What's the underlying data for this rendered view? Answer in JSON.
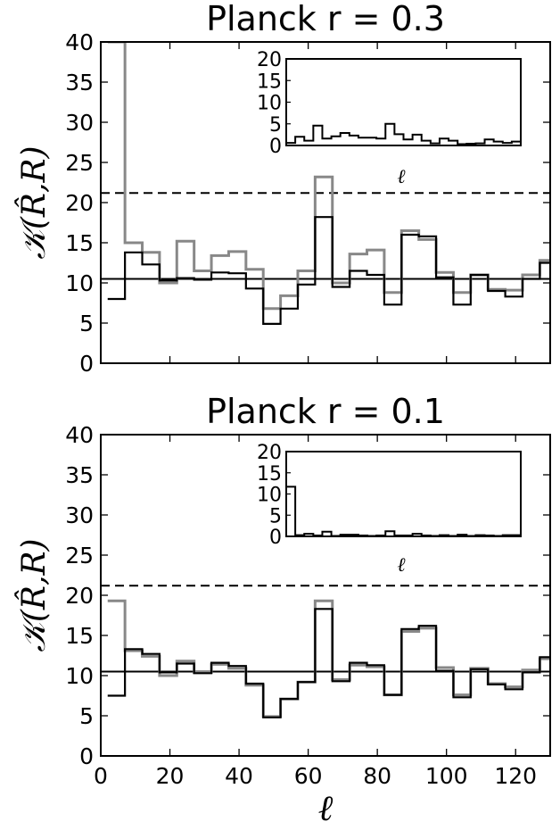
{
  "chart_data": [
    {
      "type": "line",
      "title": "Planck r = 0.3",
      "ylabel": "𝒦(R̂,R)",
      "xlabel": "",
      "xlim": [
        0,
        130
      ],
      "ylim": [
        0,
        40
      ],
      "yticks": [
        0,
        5,
        10,
        15,
        20,
        25,
        30,
        35,
        40
      ],
      "xticks": [
        0,
        20,
        40,
        60,
        80,
        100,
        120
      ],
      "show_xtick_labels": false,
      "hlines": [
        {
          "y": 10.5,
          "style": "solid",
          "color": "#000000"
        },
        {
          "y": 21.2,
          "style": "dashed",
          "color": "#000000"
        }
      ],
      "bin_edges": [
        2,
        7,
        12,
        17,
        22,
        27,
        32,
        37,
        42,
        47,
        52,
        57,
        62,
        67,
        72,
        77,
        82,
        87,
        92,
        97,
        102,
        107,
        112,
        117,
        122,
        127,
        132
      ],
      "series": [
        {
          "color": "#000000",
          "values": [
            8,
            13.8,
            12.3,
            10.3,
            10.6,
            10.4,
            11.3,
            11.2,
            9.3,
            4.9,
            6.8,
            9.8,
            18.2,
            9.5,
            11.5,
            11.0,
            7.3,
            16.0,
            15.8,
            10.7,
            7.3,
            11.0,
            9.0,
            8.3,
            10.5,
            12.5
          ]
        },
        {
          "color": "#888888",
          "values": [
            40,
            15.0,
            13.8,
            10.0,
            15.2,
            11.5,
            13.4,
            13.9,
            11.7,
            6.8,
            8.4,
            11.5,
            23.2,
            10.0,
            13.6,
            14.1,
            8.8,
            16.5,
            15.4,
            11.3,
            8.8,
            11.0,
            9.2,
            9.1,
            11.0,
            12.8
          ]
        }
      ],
      "inset": {
        "xlabel": "ℓ",
        "ylim": [
          0,
          20
        ],
        "yticks": [
          0,
          5,
          10,
          15,
          20
        ],
        "values": [
          0.6,
          2.0,
          1.1,
          4.6,
          1.6,
          2.1,
          2.9,
          2.3,
          1.8,
          1.8,
          1.6,
          5.0,
          2.6,
          1.4,
          2.5,
          1.1,
          0.5,
          1.6,
          1.1,
          0.3,
          0.4,
          0.5,
          1.4,
          0.9,
          0.6,
          0.9
        ]
      }
    },
    {
      "type": "line",
      "title": "Planck r = 0.1",
      "ylabel": "𝒦(R̂,R)",
      "xlabel": "ℓ",
      "xlim": [
        0,
        130
      ],
      "ylim": [
        0,
        40
      ],
      "yticks": [
        0,
        5,
        10,
        15,
        20,
        25,
        30,
        35,
        40
      ],
      "xticks": [
        0,
        20,
        40,
        60,
        80,
        100,
        120
      ],
      "show_xtick_labels": true,
      "hlines": [
        {
          "y": 10.5,
          "style": "solid",
          "color": "#000000"
        },
        {
          "y": 21.2,
          "style": "dashed",
          "color": "#000000"
        }
      ],
      "bin_edges": [
        2,
        7,
        12,
        17,
        22,
        27,
        32,
        37,
        42,
        47,
        52,
        57,
        62,
        67,
        72,
        77,
        82,
        87,
        92,
        97,
        102,
        107,
        112,
        117,
        122,
        127,
        132
      ],
      "series": [
        {
          "color": "#000000",
          "values": [
            7.5,
            13.3,
            12.7,
            10.4,
            11.5,
            10.3,
            11.6,
            11.2,
            9.0,
            4.8,
            7.1,
            9.2,
            18.3,
            9.3,
            11.6,
            11.3,
            7.6,
            15.8,
            16.2,
            10.6,
            7.3,
            10.8,
            8.9,
            8.3,
            10.4,
            12.3
          ]
        },
        {
          "color": "#888888",
          "values": [
            19.3,
            13.1,
            12.4,
            10.0,
            11.8,
            10.4,
            11.4,
            10.9,
            8.8,
            4.9,
            7.1,
            9.2,
            19.3,
            9.5,
            11.3,
            11.1,
            7.6,
            15.5,
            15.9,
            11.0,
            7.6,
            10.9,
            9.0,
            8.6,
            10.7,
            12.1
          ]
        }
      ],
      "inset": {
        "xlabel": "ℓ",
        "ylim": [
          0,
          20
        ],
        "yticks": [
          0,
          5,
          10,
          15,
          20
        ],
        "values": [
          11.7,
          0.3,
          0.6,
          0.2,
          1.1,
          0.1,
          0.4,
          0.4,
          0.2,
          0.1,
          0.2,
          1.2,
          0.2,
          0.2,
          0.6,
          0.2,
          0.1,
          0.3,
          0.1,
          0.4,
          0.1,
          0.3,
          0.2,
          0.1,
          0.3,
          0.3
        ]
      }
    }
  ]
}
